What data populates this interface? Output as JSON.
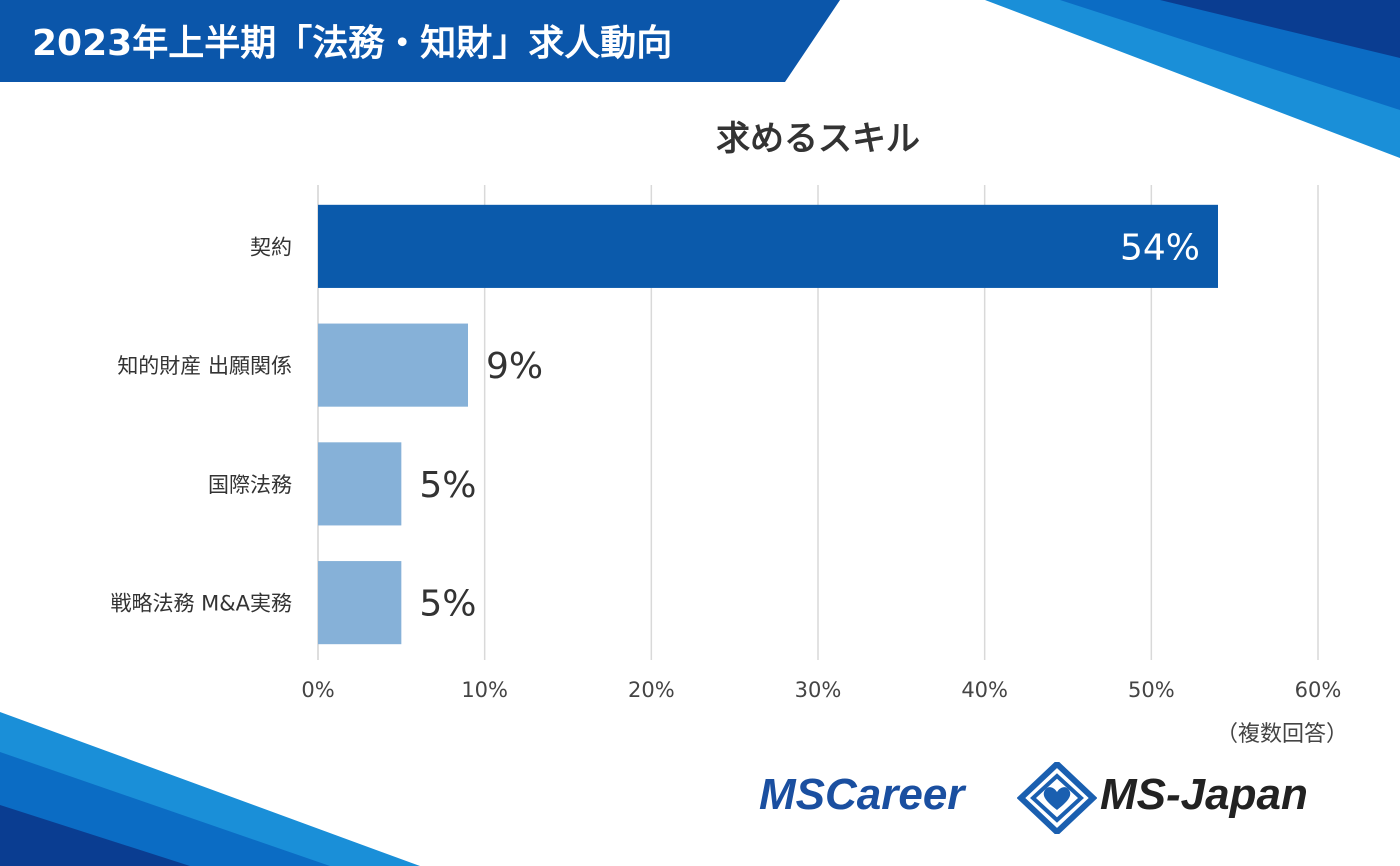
{
  "header": {
    "title": "2023年上半期「法務・知財」求人動向"
  },
  "colors": {
    "banner_blue": "#0b56aa",
    "bar_primary": "#0b5aab",
    "bar_secondary": "#86b1d8",
    "deco_light": "#1a8fd8",
    "deco_dark": "#0a3d91"
  },
  "chart_data": {
    "type": "bar",
    "orientation": "horizontal",
    "title": "求めるスキル",
    "categories": [
      "契約",
      "知的財産 出願関係",
      "国際法務",
      "戦略法務 M&A実務"
    ],
    "values": [
      54,
      9,
      5,
      5
    ],
    "value_labels": [
      "54%",
      "9%",
      "5%",
      "5%"
    ],
    "xlim": [
      0,
      60
    ],
    "x_ticks": [
      0,
      10,
      20,
      30,
      40,
      50,
      60
    ],
    "x_tick_labels": [
      "0%",
      "10%",
      "20%",
      "30%",
      "40%",
      "50%",
      "60%"
    ],
    "grid": "vertical",
    "legend": "none"
  },
  "footnote": "（複数回答）",
  "logos": {
    "left": "MSCareer",
    "right": "MS-Japan"
  }
}
